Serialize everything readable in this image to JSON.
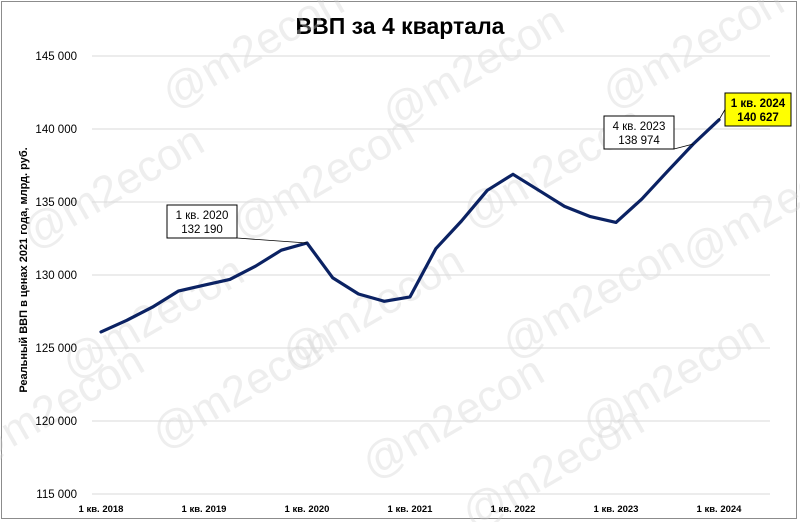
{
  "chart_data": {
    "type": "line",
    "title": "ВВП за 4 квартала",
    "ylabel": "Реальный ВВП в ценах 2021 года, млрд. руб.",
    "xlabel": "",
    "x_tick_labels": [
      "1 кв. 2018",
      "1 кв. 2019",
      "1 кв. 2020",
      "1 кв. 2021",
      "1 кв. 2022",
      "1 кв. 2023",
      "1 кв. 2024"
    ],
    "y_tick_labels": [
      "115 000",
      "120 000",
      "125 000",
      "130 000",
      "135 000",
      "140 000",
      "145 000"
    ],
    "ylim": [
      115000,
      145000
    ],
    "grid": true,
    "series": [
      {
        "color": "#0b2263",
        "x": [
          "1 кв. 2018",
          "2 кв. 2018",
          "3 кв. 2018",
          "4 кв. 2018",
          "1 кв. 2019",
          "2 кв. 2019",
          "3 кв. 2019",
          "4 кв. 2019",
          "1 кв. 2020",
          "2 кв. 2020",
          "3 кв. 2020",
          "4 кв. 2020",
          "1 кв. 2021",
          "2 кв. 2021",
          "3 кв. 2021",
          "4 кв. 2021",
          "1 кв. 2022",
          "2 кв. 2022",
          "3 кв. 2022",
          "4 кв. 2022",
          "1 кв. 2023",
          "2 кв. 2023",
          "3 кв. 2023",
          "4 кв. 2023",
          "1 кв. 2024"
        ],
        "values": [
          126100,
          126900,
          127800,
          128900,
          129300,
          129700,
          130600,
          131700,
          132190,
          129800,
          128700,
          128200,
          128500,
          131800,
          133700,
          135800,
          136900,
          135800,
          134700,
          134000,
          133600,
          135200,
          137100,
          138974,
          140627
        ]
      }
    ],
    "annotations": [
      {
        "line1": "1 кв. 2020",
        "line2": "132 190",
        "point_index": 8,
        "highlight": false
      },
      {
        "line1": "4 кв. 2023",
        "line2": "138 974",
        "point_index": 23,
        "highlight": false
      },
      {
        "line1": "1 кв. 2024",
        "line2": "140 627",
        "point_index": 24,
        "highlight": true
      }
    ],
    "highlight_color": "#ffff00"
  },
  "watermark": "@m2econ"
}
